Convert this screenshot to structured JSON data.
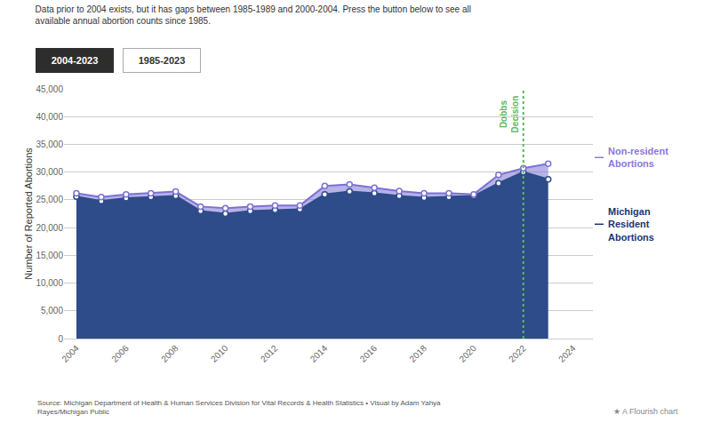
{
  "chart_data": {
    "type": "area",
    "title": "Data prior to 2004 exists, but it has gaps between 1985-1989 and 2000-2004. Press the button below to see all\navailable annual abortion counts since 1985.",
    "x": [
      2004,
      2005,
      2006,
      2007,
      2008,
      2009,
      2010,
      2011,
      2012,
      2013,
      2014,
      2015,
      2016,
      2017,
      2018,
      2019,
      2020,
      2021,
      2022,
      2023
    ],
    "series": [
      {
        "color": "#2e4b8a",
        "values": [
          25600,
          24800,
          25300,
          25500,
          25700,
          23000,
          22500,
          23000,
          23200,
          23300,
          26000,
          26500,
          26200,
          25700,
          25400,
          25500,
          25700,
          28000,
          30000,
          28700
        ]
      },
      {
        "color": "#7b72d4",
        "values": [
          26200,
          25500,
          26000,
          26200,
          26500,
          23800,
          23500,
          23800,
          24000,
          24000,
          27500,
          27800,
          27200,
          26600,
          26200,
          26200,
          26000,
          29500,
          30700,
          31500
        ]
      }
    ],
    "marker": "circle",
    "xlim": [
      2003.5,
      2024.8
    ],
    "xticks": [
      2004,
      2006,
      2008,
      2010,
      2012,
      2014,
      2016,
      2018,
      2020,
      2022,
      2024
    ],
    "ylim": [
      0,
      45000
    ],
    "yticks": [
      0,
      {
        "value": 5000,
        "label": "5,000"
      },
      {
        "value": 10000,
        "label": "10,000"
      },
      {
        "value": 15000,
        "label": "15,000"
      },
      {
        "value": 20000,
        "label": "20,000"
      },
      {
        "value": 25000,
        "label": "25,000"
      },
      {
        "value": 30000,
        "label": "30,000"
      },
      {
        "value": 35000,
        "label": "35,000"
      },
      {
        "value": 40000,
        "label": "40,000"
      },
      {
        "value": 45000,
        "label": "45,000"
      }
    ],
    "ylabel": "Number of Reported Abortions",
    "grid": true,
    "vlines": [
      {
        "x": 2022,
        "label": "Dobbs\nDecision",
        "color": "#5cb85c",
        "line_style": "dotted"
      }
    ],
    "annotations": [
      {
        "text": "Non-resident\nAbortions",
        "color": "#8878e0"
      },
      {
        "text": "Michigan\nResident\nAbortions",
        "color": "#1a3572"
      }
    ],
    "buttons": [
      "2004-2023",
      "1985-2023"
    ],
    "source": "Source: Michigan Department of Health & Human Services Division for Vital Records & Health Statistics • Visual by Adam Yahya\nRayes/Michigan Public",
    "credit": "★ A Flourish chart"
  }
}
